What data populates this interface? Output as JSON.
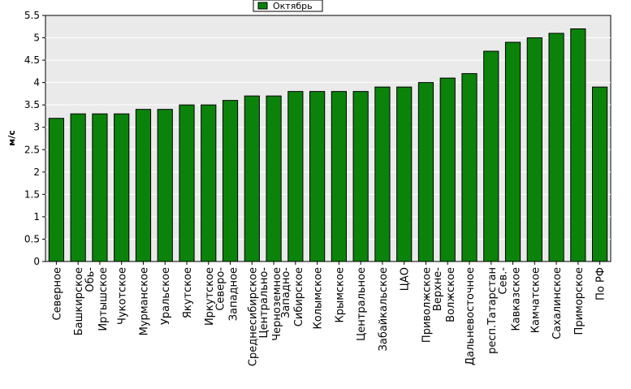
{
  "chart_data": {
    "type": "bar",
    "ylabel": "м/с",
    "xlabel": "",
    "ylim": [
      0,
      5.5
    ],
    "ytick_step": 0.5,
    "yticks": [
      "0",
      "0.5",
      "1",
      "1.5",
      "2",
      "2.5",
      "3",
      "3.5",
      "4",
      "4.5",
      "5",
      "5.5"
    ],
    "grid": true,
    "legend_position": "top-center",
    "categories": [
      [
        "Северное"
      ],
      [
        "Башкирское"
      ],
      [
        "Обь-",
        "Иртышское"
      ],
      [
        "Чукотское"
      ],
      [
        "Мурманское"
      ],
      [
        "Уральское"
      ],
      [
        "Якутское"
      ],
      [
        "Иркутское"
      ],
      [
        "Северо-",
        "Западное"
      ],
      [
        "Среднесибирское"
      ],
      [
        "Центрально-",
        "Черноземное"
      ],
      [
        "Западно-",
        "Сибирское"
      ],
      [
        "Колымское"
      ],
      [
        "Крымское"
      ],
      [
        "Центральное"
      ],
      [
        "Забайкальское"
      ],
      [
        "ЦАО"
      ],
      [
        "Приволжское"
      ],
      [
        "Верхне-",
        "Волжское"
      ],
      [
        "Дальневосточное"
      ],
      [
        "респ.Татарстан"
      ],
      [
        "Сев.-",
        "Кавказское"
      ],
      [
        "Камчатское"
      ],
      [
        "Сахалинское"
      ],
      [
        "Приморское"
      ],
      [
        "По РФ"
      ]
    ],
    "series": [
      {
        "name": "Октябрь",
        "color": "#0b830b",
        "values": [
          3.2,
          3.3,
          3.3,
          3.3,
          3.4,
          3.4,
          3.5,
          3.5,
          3.6,
          3.7,
          3.7,
          3.8,
          3.8,
          3.8,
          3.8,
          3.9,
          3.9,
          4.0,
          4.1,
          4.2,
          4.7,
          4.9,
          5.0,
          5.1,
          5.2,
          3.9
        ]
      }
    ],
    "colors": {
      "plot_background": "#eaeaea",
      "grid": "#ffffff",
      "bar_border": "#000000"
    }
  }
}
